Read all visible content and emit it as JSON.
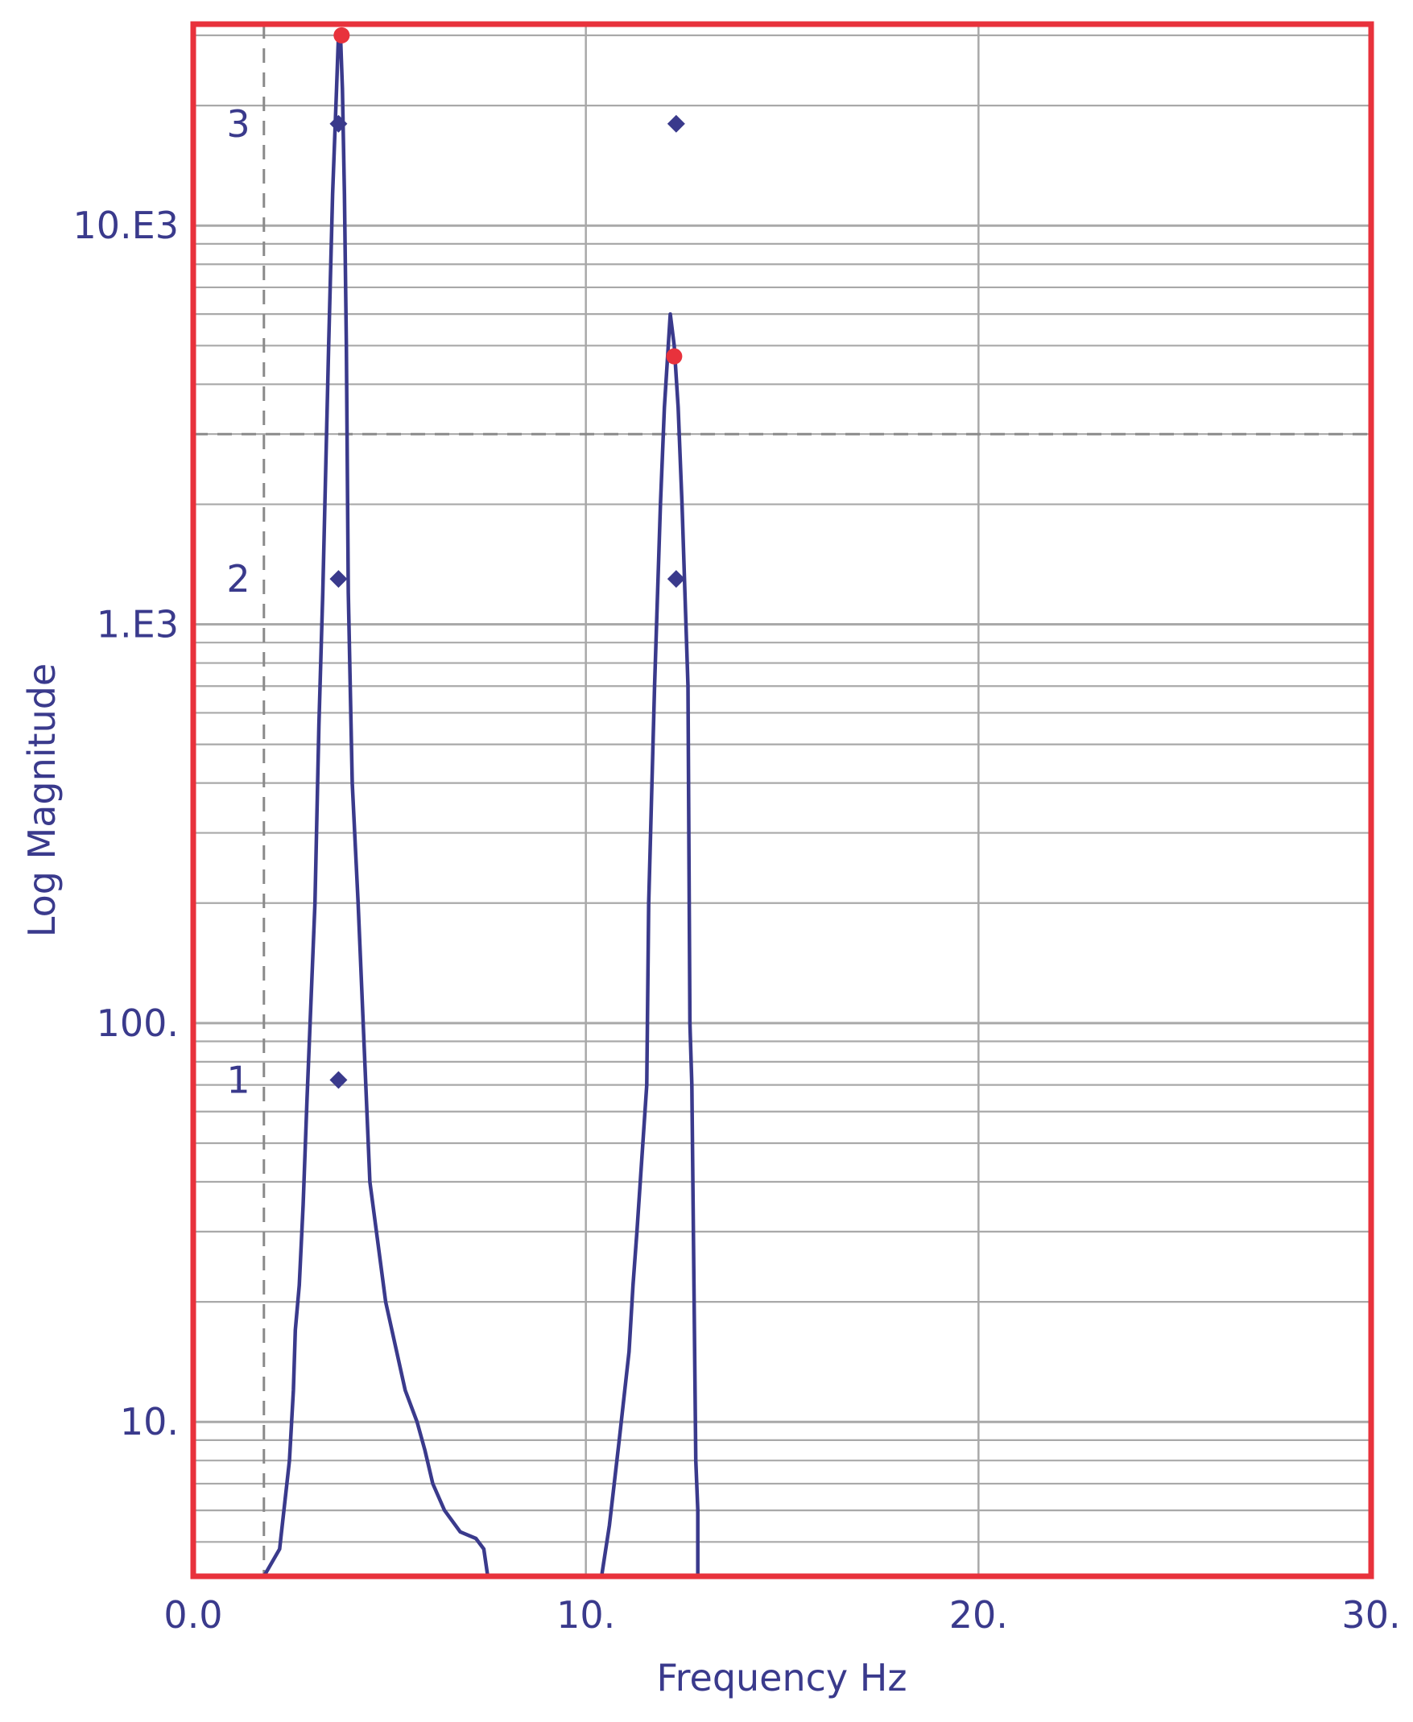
{
  "chart_data": {
    "type": "line",
    "title": "",
    "xlabel": "Frequency Hz",
    "ylabel": "Log Magnitude",
    "xlim": [
      0,
      30
    ],
    "ylim": [
      4.1,
      32000
    ],
    "yscale": "log",
    "grid": true,
    "x_ticks": [
      {
        "value": 0,
        "label": "0.0"
      },
      {
        "value": 10,
        "label": "10."
      },
      {
        "value": 20,
        "label": "20."
      },
      {
        "value": 30,
        "label": "30."
      }
    ],
    "y_ticks": [
      {
        "value": 10,
        "label": "10."
      },
      {
        "value": 100,
        "label": "100."
      },
      {
        "value": 1000,
        "label": "1.E3"
      },
      {
        "value": 10000,
        "label": "10.E3"
      }
    ],
    "series": [
      {
        "x": [
          1.8,
          2.2,
          2.45,
          2.55,
          2.6,
          2.7,
          2.8,
          2.9,
          3.1,
          3.2,
          3.3,
          3.45,
          3.55,
          3.65,
          3.7,
          3.75,
          3.8,
          3.85,
          3.9,
          3.95,
          4.05,
          4.2,
          4.5,
          4.9,
          5.4,
          5.7,
          5.9,
          6.1,
          6.4,
          6.8,
          7.2,
          7.4,
          7.5
        ],
        "y": [
          4.1,
          4.8,
          8,
          12,
          17,
          22,
          35,
          65,
          200,
          560,
          1200,
          5000,
          12000,
          22000,
          30000,
          30000,
          22000,
          12000,
          5000,
          1200,
          400,
          200,
          40,
          20,
          12,
          10,
          8.5,
          7,
          6,
          5.3,
          5.1,
          4.8,
          4.1
        ]
      },
      {
        "x": [
          10.4,
          10.6,
          10.85,
          11.1,
          11.2,
          11.3,
          11.55,
          11.6,
          11.75,
          11.9,
          12.0,
          12.15,
          12.25,
          12.35,
          12.45,
          12.6,
          12.65,
          12.7,
          12.8,
          12.85,
          12.85
        ],
        "y": [
          4.1,
          5.5,
          9,
          15,
          22,
          30,
          70,
          200,
          700,
          2000,
          3500,
          6000,
          5000,
          3500,
          2000,
          700,
          100,
          70,
          8,
          6,
          4.1
        ]
      }
    ],
    "peak_markers": [
      {
        "x": 3.78,
        "y": 30000
      },
      {
        "x": 12.25,
        "y": 4700
      }
    ],
    "cursor_lines": {
      "x": 1.8,
      "y": 3000
    },
    "annotations": [
      {
        "label": "1",
        "y": 72,
        "points_x": [
          3.7
        ]
      },
      {
        "label": "2",
        "y": 1300,
        "points_x": [
          3.7,
          12.3
        ]
      },
      {
        "label": "3",
        "y": 18000,
        "points_x": [
          3.7,
          12.3
        ]
      }
    ],
    "colors": {
      "frame": "#e8323c",
      "line": "#3a3a8c",
      "text": "#3a3a8c",
      "grid": "#a9a9a9",
      "peak": "#e8323c"
    }
  }
}
